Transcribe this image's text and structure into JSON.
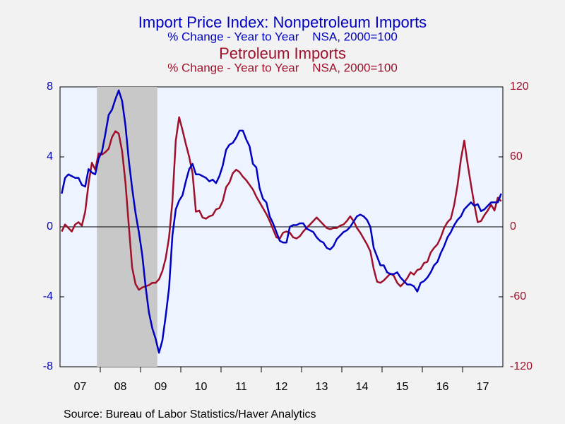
{
  "chart_data": {
    "type": "line",
    "title": "Import Price Index: Nonpetroleum Imports",
    "subtitle": "% Change - Year to Year    NSA, 2000=100",
    "title2": "Petroleum Imports",
    "subtitle2": "% Change - Year to Year    NSA, 2000=100",
    "source": "Source:  Bureau of Labor Statistics/Haver Analytics",
    "categories": [
      null,
      null,
      null,
      null,
      null,
      null,
      "07",
      null,
      null,
      null,
      null,
      null,
      null,
      null,
      null,
      null,
      null,
      null,
      "08",
      null,
      null,
      null,
      null,
      null,
      null,
      null,
      null,
      null,
      null,
      null,
      "09",
      null,
      null,
      null,
      null,
      null,
      null,
      null,
      null,
      null,
      null,
      null,
      "10",
      null,
      null,
      null,
      null,
      null,
      null,
      null,
      null,
      null,
      null,
      null,
      "11",
      null,
      null,
      null,
      null,
      null,
      null,
      null,
      null,
      null,
      null,
      null,
      "12",
      null,
      null,
      null,
      null,
      null,
      null,
      null,
      null,
      null,
      null,
      null,
      "13",
      null,
      null,
      null,
      null,
      null,
      null,
      null,
      null,
      null,
      null,
      null,
      "14",
      null,
      null,
      null,
      null,
      null,
      null,
      null,
      null,
      null,
      null,
      null,
      "15",
      null,
      null,
      null,
      null,
      null,
      null,
      null,
      null,
      null,
      null,
      null,
      "16",
      null,
      null,
      null,
      null,
      null,
      null,
      null,
      null,
      null,
      null,
      null,
      "17",
      null,
      null,
      null,
      null,
      null
    ],
    "series": [
      {
        "name": "Import Price Index: Nonpetroleum Imports",
        "color": "#0000c0",
        "axis": "y",
        "values": [
          1.9,
          2.8,
          3.0,
          2.9,
          2.8,
          2.8,
          2.4,
          2.3,
          3.3,
          3.1,
          3.0,
          3.9,
          4.3,
          5.3,
          6.4,
          6.7,
          7.3,
          7.8,
          7.2,
          5.8,
          3.8,
          2.2,
          0.8,
          -0.3,
          -1.6,
          -3.4,
          -4.9,
          -5.8,
          -6.4,
          -7.2,
          -6.5,
          -5.1,
          -3.5,
          -0.5,
          1.0,
          1.5,
          1.8,
          2.6,
          3.3,
          3.6,
          3.0,
          3.0,
          2.9,
          2.8,
          2.6,
          2.7,
          2.5,
          2.9,
          3.5,
          4.4,
          4.7,
          4.8,
          5.1,
          5.5,
          5.5,
          5.0,
          4.6,
          3.6,
          3.4,
          2.2,
          1.6,
          1.4,
          0.6,
          0.2,
          -0.3,
          -0.8,
          -0.9,
          -0.9,
          0.0,
          0.1,
          0.1,
          0.2,
          0.2,
          -0.1,
          -0.2,
          -0.3,
          -0.6,
          -0.8,
          -0.9,
          -1.2,
          -1.3,
          -1.1,
          -0.7,
          -0.5,
          -0.3,
          -0.2,
          0.0,
          0.3,
          0.6,
          0.7,
          0.6,
          0.4,
          0.0,
          -1.2,
          -1.7,
          -2.2,
          -2.2,
          -2.6,
          -2.7,
          -2.7,
          -2.6,
          -2.9,
          -3.1,
          -3.3,
          -3.3,
          -3.4,
          -3.7,
          -3.2,
          -3.1,
          -2.9,
          -2.6,
          -2.2,
          -2.0,
          -1.5,
          -1.1,
          -0.6,
          -0.3,
          0.1,
          0.4,
          0.6,
          1.0,
          1.2,
          1.4,
          1.2,
          1.3,
          0.9,
          1.0,
          1.2,
          1.4,
          1.4,
          1.4,
          1.9
        ]
      },
      {
        "name": "Petroleum Imports",
        "color": "#a0102a",
        "axis": "y2",
        "values": [
          -4,
          2,
          -1,
          -4,
          2,
          4,
          1,
          13,
          37,
          55,
          49,
          63,
          62,
          64,
          67,
          77,
          82,
          80,
          65,
          38,
          1,
          -35,
          -49,
          -54,
          -52,
          -51,
          -50,
          -48,
          -48,
          -45,
          -38,
          -27,
          -9,
          22,
          74,
          94,
          83,
          71,
          60,
          46,
          13,
          14,
          8,
          7,
          9,
          10,
          15,
          16,
          22,
          34,
          38,
          46,
          49,
          47,
          43,
          40,
          36,
          32,
          26,
          21,
          16,
          11,
          5,
          -2,
          -9,
          -10,
          -5,
          -4,
          -5,
          -9,
          -10,
          -8,
          -4,
          -1,
          2,
          5,
          8,
          5,
          2,
          -1,
          -2,
          -1,
          -1,
          1,
          2,
          5,
          9,
          5,
          -1,
          -5,
          -10,
          -15,
          -21,
          -36,
          -47,
          -48,
          -46,
          -43,
          -40,
          -42,
          -48,
          -51,
          -48,
          -44,
          -39,
          -41,
          -37,
          -36,
          -31,
          -30,
          -22,
          -18,
          -15,
          -9,
          -1,
          4,
          7,
          19,
          36,
          58,
          74,
          54,
          36,
          19,
          4,
          5,
          10,
          14,
          19,
          14,
          25,
          22
        ]
      }
    ],
    "ylim": [
      -8,
      8
    ],
    "yticks": [
      -8,
      -4,
      0,
      4,
      8
    ],
    "y2lim": [
      -120,
      120
    ],
    "y2ticks": [
      -120,
      -60,
      0,
      60,
      120
    ],
    "shading": [
      11,
      28
    ],
    "zero_line": true
  }
}
